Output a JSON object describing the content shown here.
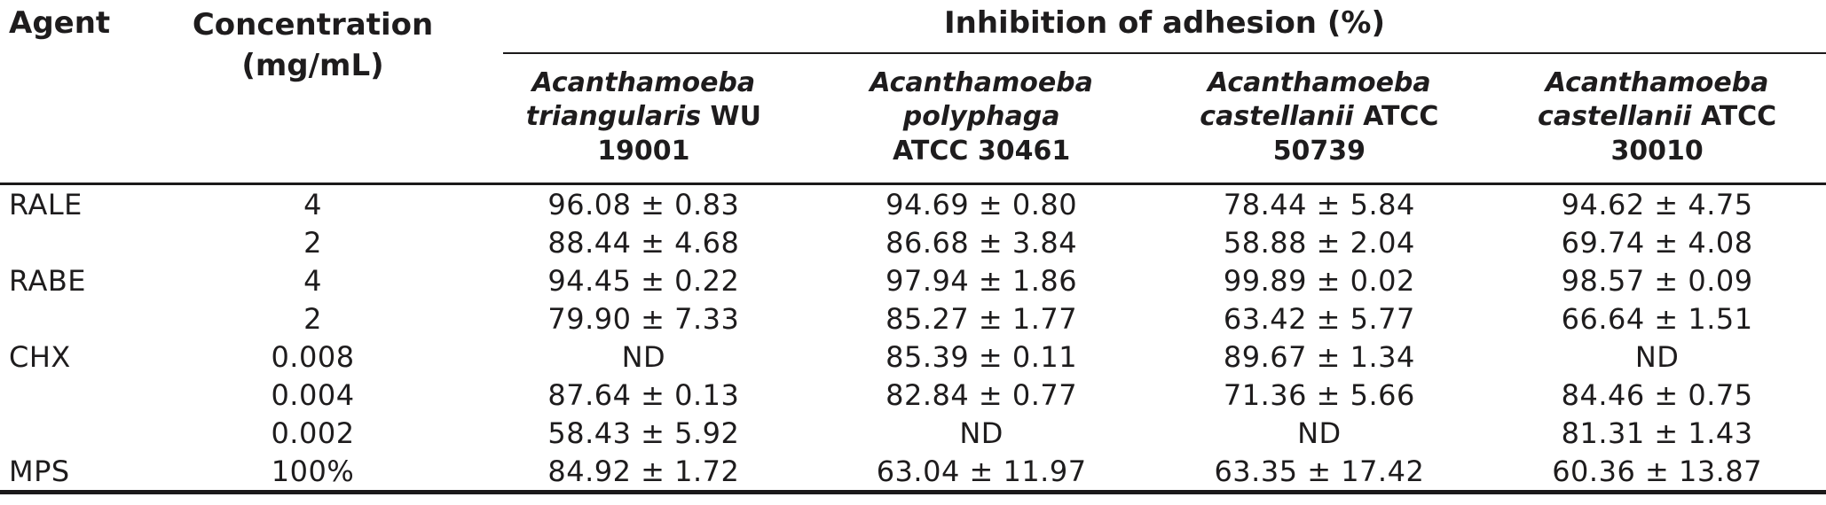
{
  "table": {
    "header": {
      "agent_label": "Agent",
      "concentration_label_line1": "Concentration",
      "concentration_label_line2": "(mg/mL)",
      "spanner_label": "Inhibition of adhesion (%)",
      "columns": [
        {
          "full_name": "Acanthamoeba triangularis WU 19001",
          "line1": "Acanthamoeba",
          "line2_italic": "triangularis",
          "line2_roman": "WU",
          "line3": "19001"
        },
        {
          "full_name": "Acanthamoeba polyphaga ATCC 30461",
          "line1": "Acanthamoeba",
          "line2_italic": "polyphaga",
          "line2_roman": "",
          "line3": "ATCC 30461"
        },
        {
          "full_name": "Acanthamoeba castellanii ATCC 50739",
          "line1": "Acanthamoeba",
          "line2_italic": "castellanii",
          "line2_roman": "ATCC",
          "line3": "50739"
        },
        {
          "full_name": "Acanthamoeba castellanii ATCC 30010",
          "line1": "Acanthamoeba",
          "line2_italic": "castellanii",
          "line2_roman": "ATCC",
          "line3": "30010"
        }
      ]
    },
    "rows": [
      {
        "agent": "RALE",
        "conc": "4",
        "v": [
          "96.08 ± 0.83",
          "94.69 ± 0.80",
          "78.44 ± 5.84",
          "94.62 ± 4.75"
        ]
      },
      {
        "agent": "",
        "conc": "2",
        "v": [
          "88.44 ± 4.68",
          "86.68 ± 3.84",
          "58.88 ± 2.04",
          "69.74 ± 4.08"
        ]
      },
      {
        "agent": "RABE",
        "conc": "4",
        "v": [
          "94.45 ± 0.22",
          "97.94 ± 1.86",
          "99.89 ± 0.02",
          "98.57 ± 0.09"
        ]
      },
      {
        "agent": "",
        "conc": "2",
        "v": [
          "79.90 ± 7.33",
          "85.27 ± 1.77",
          "63.42 ± 5.77",
          "66.64 ± 1.51"
        ]
      },
      {
        "agent": "CHX",
        "conc": "0.008",
        "v": [
          "ND",
          "85.39 ± 0.11",
          "89.67 ± 1.34",
          "ND"
        ]
      },
      {
        "agent": "",
        "conc": "0.004",
        "v": [
          "87.64 ± 0.13",
          "82.84 ± 0.77",
          "71.36 ± 5.66",
          "84.46 ± 0.75"
        ]
      },
      {
        "agent": "",
        "conc": "0.002",
        "v": [
          "58.43 ± 5.92",
          "ND",
          "ND",
          "81.31 ± 1.43"
        ]
      },
      {
        "agent": "MPS",
        "conc": "100%",
        "v": [
          "84.92 ± 1.72",
          "63.04 ± 11.97",
          "63.35 ± 17.42",
          "60.36 ± 13.87"
        ]
      }
    ]
  },
  "colors": {
    "text": "#1e1c1d",
    "rule": "#1b191a",
    "background": "#ffffff"
  }
}
